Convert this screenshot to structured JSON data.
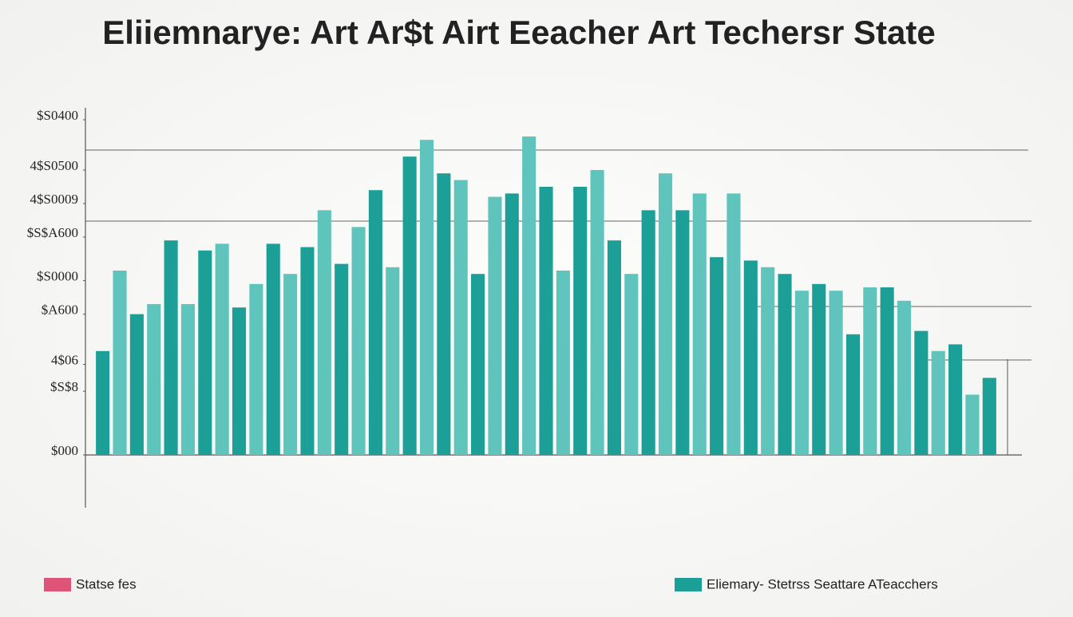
{
  "chart_data": {
    "type": "bar",
    "title": "Eliiemnarye: Art Ar$t Airt Eeacher Art Techersr State",
    "values": [
      31,
      55,
      42,
      45,
      64,
      45,
      61,
      63,
      44,
      51,
      63,
      54,
      62,
      73,
      57,
      68,
      79,
      56,
      89,
      94,
      84,
      82,
      54,
      77,
      78,
      95,
      80,
      55,
      80,
      85,
      64,
      54,
      73,
      84,
      73,
      78,
      59,
      78,
      58,
      56,
      54,
      49,
      51,
      49,
      36,
      50,
      50,
      46,
      37,
      31,
      33,
      18,
      23
    ],
    "colors": [
      "#1c9f97",
      "#5ec4bc"
    ],
    "ylim": [
      0,
      100
    ],
    "yticks": [
      {
        "value": 0,
        "label": "$000"
      },
      {
        "value": 19,
        "label": "$S$8"
      },
      {
        "value": 27,
        "label": "4$06"
      },
      {
        "value": 42,
        "label": "$A600"
      },
      {
        "value": 52,
        "label": "$S0000"
      },
      {
        "value": 65,
        "label": "$S$A600"
      },
      {
        "value": 75,
        "label": "4$S0009"
      },
      {
        "value": 85,
        "label": "4$S0500"
      },
      {
        "value": 100,
        "label": "$S0400"
      }
    ],
    "legend": [
      {
        "name": "Statse fes",
        "color": "#de5478"
      },
      {
        "name": "Eliemary- Stetrss Seattare ATeacchers",
        "color": "#1c9f97"
      }
    ]
  }
}
